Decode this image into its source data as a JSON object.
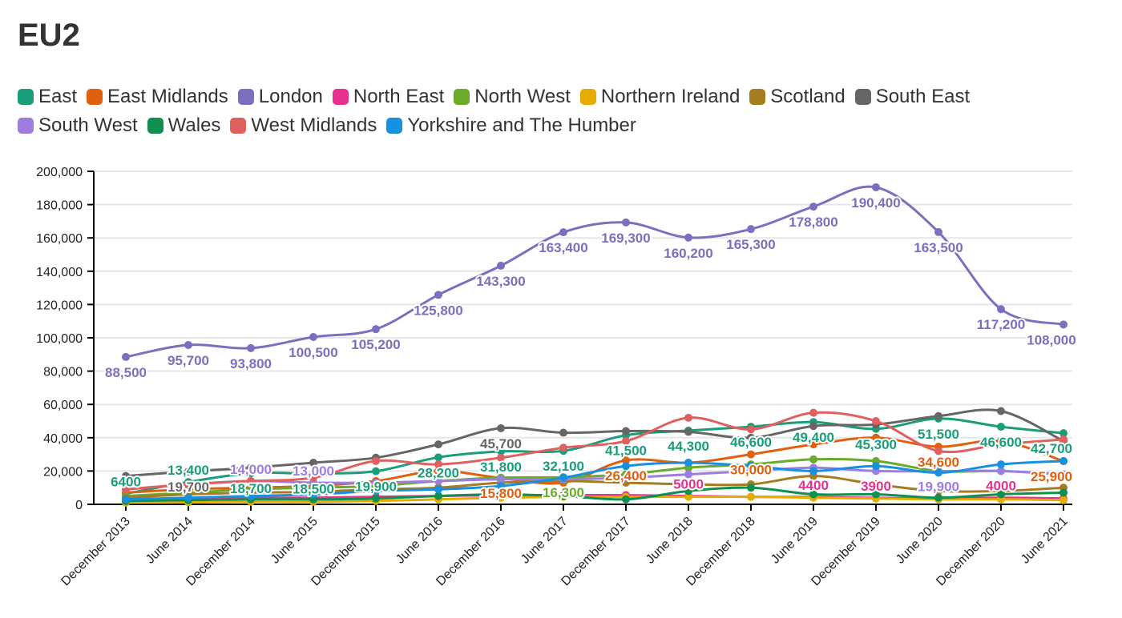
{
  "chart_data": {
    "type": "line",
    "title": "EU2",
    "xlabel": "",
    "ylabel": "",
    "ylim": [
      0,
      200000
    ],
    "yticks": [
      0,
      20000,
      40000,
      60000,
      80000,
      100000,
      120000,
      140000,
      160000,
      180000,
      200000
    ],
    "ytick_labels": [
      "0",
      "20,000",
      "40,000",
      "60,000",
      "80,000",
      "100,000",
      "120,000",
      "140,000",
      "160,000",
      "180,000",
      "200,000"
    ],
    "grid": true,
    "legend_position": "top",
    "categories": [
      "December 2013",
      "June 2014",
      "December 2014",
      "June 2015",
      "December 2015",
      "June 2016",
      "December 2016",
      "June 2017",
      "December 2017",
      "June 2018",
      "December 2018",
      "June 2019",
      "December 2019",
      "June 2020",
      "December 2020",
      "June 2021"
    ],
    "series": [
      {
        "name": "East",
        "color": "#1a9e7a",
        "values": [
          6400,
          13400,
          18700,
          18500,
          19900,
          28200,
          31800,
          32100,
          41500,
          44300,
          46600,
          49400,
          45300,
          51500,
          46600,
          42700
        ]
      },
      {
        "name": "East Midlands",
        "color": "#e06010",
        "values": [
          7000,
          9000,
          10000,
          11000,
          14000,
          20000,
          15800,
          13000,
          26400,
          25000,
          30000,
          36000,
          40000,
          34600,
          38000,
          25900
        ]
      },
      {
        "name": "London",
        "color": "#7b6fbf",
        "values": [
          88500,
          95700,
          93800,
          100500,
          105200,
          125800,
          143300,
          163400,
          169300,
          160200,
          165300,
          178800,
          190400,
          163500,
          117200,
          108000
        ]
      },
      {
        "name": "North East",
        "color": "#e83090",
        "values": [
          3000,
          3500,
          3800,
          4000,
          4500,
          5000,
          5500,
          5500,
          5500,
          5000,
          4500,
          4400,
          3900,
          3500,
          4000,
          3500
        ]
      },
      {
        "name": "North West",
        "color": "#6aab2a",
        "values": [
          5000,
          7000,
          9000,
          10000,
          11000,
          14000,
          16000,
          16300,
          18000,
          22000,
          24000,
          27000,
          26000,
          20000,
          20000,
          18000
        ]
      },
      {
        "name": "Northern Ireland",
        "color": "#e6ac00",
        "values": [
          1000,
          1200,
          1500,
          1500,
          2000,
          3000,
          4000,
          4500,
          4500,
          4500,
          4500,
          4000,
          3500,
          3000,
          3000,
          2500
        ]
      },
      {
        "name": "Scotland",
        "color": "#a67c20",
        "values": [
          4000,
          6000,
          7000,
          7500,
          9000,
          10000,
          13000,
          14000,
          13000,
          12000,
          12000,
          17000,
          12000,
          8000,
          8000,
          10000
        ]
      },
      {
        "name": "South East",
        "color": "#666666",
        "values": [
          17000,
          19700,
          22000,
          25000,
          28000,
          36000,
          45700,
          43000,
          44000,
          43500,
          40000,
          47000,
          48000,
          53000,
          56000,
          38000
        ]
      },
      {
        "name": "South West",
        "color": "#9d7de0",
        "values": [
          9000,
          12000,
          14000,
          13000,
          13000,
          14000,
          15000,
          15000,
          16000,
          18000,
          20000,
          22000,
          20000,
          19900,
          20000,
          18000
        ]
      },
      {
        "name": "Wales",
        "color": "#0f9050",
        "values": [
          2000,
          2500,
          3000,
          3000,
          3500,
          5000,
          6000,
          5000,
          3000,
          8000,
          10000,
          6000,
          6000,
          4000,
          6000,
          7000
        ]
      },
      {
        "name": "West Midlands",
        "color": "#e06060",
        "values": [
          9000,
          12000,
          14000,
          16000,
          26000,
          24000,
          28000,
          34000,
          38000,
          52000,
          45000,
          55000,
          50000,
          32000,
          36000,
          39000
        ]
      },
      {
        "name": "Yorkshire and The Humber",
        "color": "#1890e0",
        "values": [
          3000,
          4000,
          5000,
          6000,
          8000,
          9000,
          11000,
          16000,
          23000,
          25000,
          23000,
          20000,
          23000,
          19000,
          24000,
          26000
        ]
      }
    ],
    "data_labels": [
      {
        "series": "London",
        "index": 0,
        "text": "88,500",
        "pos": "below"
      },
      {
        "series": "London",
        "index": 1,
        "text": "95,700",
        "pos": "below"
      },
      {
        "series": "London",
        "index": 2,
        "text": "93,800",
        "pos": "below"
      },
      {
        "series": "London",
        "index": 3,
        "text": "100,500",
        "pos": "below"
      },
      {
        "series": "London",
        "index": 4,
        "text": "105,200",
        "pos": "below"
      },
      {
        "series": "London",
        "index": 5,
        "text": "125,800",
        "pos": "below"
      },
      {
        "series": "London",
        "index": 6,
        "text": "143,300",
        "pos": "below"
      },
      {
        "series": "London",
        "index": 7,
        "text": "163,400",
        "pos": "below"
      },
      {
        "series": "London",
        "index": 8,
        "text": "169,300",
        "pos": "below"
      },
      {
        "series": "London",
        "index": 9,
        "text": "160,200",
        "pos": "below"
      },
      {
        "series": "London",
        "index": 10,
        "text": "165,300",
        "pos": "below"
      },
      {
        "series": "London",
        "index": 11,
        "text": "178,800",
        "pos": "below"
      },
      {
        "series": "London",
        "index": 12,
        "text": "190,400",
        "pos": "below"
      },
      {
        "series": "London",
        "index": 13,
        "text": "163,500",
        "pos": "below"
      },
      {
        "series": "London",
        "index": 14,
        "text": "117,200",
        "pos": "below"
      },
      {
        "series": "London",
        "index": 15,
        "text": "108,000",
        "pos": "below"
      },
      {
        "series": "East",
        "index": 0,
        "text": "6400",
        "pos": "above"
      },
      {
        "series": "East",
        "index": 1,
        "text": "13,400",
        "pos": "above"
      },
      {
        "series": "East",
        "index": 2,
        "text": "18,700",
        "pos": "below"
      },
      {
        "series": "East",
        "index": 3,
        "text": "18,500",
        "pos": "below"
      },
      {
        "series": "East",
        "index": 4,
        "text": "19,900",
        "pos": "below"
      },
      {
        "series": "East",
        "index": 5,
        "text": "28,200",
        "pos": "below"
      },
      {
        "series": "East",
        "index": 6,
        "text": "31,800",
        "pos": "below"
      },
      {
        "series": "East",
        "index": 7,
        "text": "32,100",
        "pos": "below"
      },
      {
        "series": "East",
        "index": 8,
        "text": "41,500",
        "pos": "below"
      },
      {
        "series": "East",
        "index": 9,
        "text": "44,300",
        "pos": "below"
      },
      {
        "series": "East",
        "index": 10,
        "text": "46,600",
        "pos": "below"
      },
      {
        "series": "East",
        "index": 11,
        "text": "49,400",
        "pos": "below"
      },
      {
        "series": "East",
        "index": 12,
        "text": "45,300",
        "pos": "below"
      },
      {
        "series": "East",
        "index": 13,
        "text": "51,500",
        "pos": "below"
      },
      {
        "series": "East",
        "index": 14,
        "text": "46,600",
        "pos": "below"
      },
      {
        "series": "East",
        "index": 15,
        "text": "42,700",
        "pos": "below"
      },
      {
        "series": "South East",
        "index": 1,
        "text": "19,700",
        "pos": "below"
      },
      {
        "series": "South East",
        "index": 6,
        "text": "45,700",
        "pos": "below"
      },
      {
        "series": "South West",
        "index": 2,
        "text": "14,000",
        "pos": "above"
      },
      {
        "series": "South West",
        "index": 3,
        "text": "13,000",
        "pos": "above"
      },
      {
        "series": "South West",
        "index": 13,
        "text": "19,900",
        "pos": "below"
      },
      {
        "series": "East Midlands",
        "index": 6,
        "text": "15,800",
        "pos": "below"
      },
      {
        "series": "East Midlands",
        "index": 8,
        "text": "26,400",
        "pos": "below"
      },
      {
        "series": "East Midlands",
        "index": 10,
        "text": "30,000",
        "pos": "below"
      },
      {
        "series": "East Midlands",
        "index": 13,
        "text": "34,600",
        "pos": "below"
      },
      {
        "series": "East Midlands",
        "index": 15,
        "text": "25,900",
        "pos": "below"
      },
      {
        "series": "North West",
        "index": 7,
        "text": "16,300",
        "pos": "below"
      },
      {
        "series": "North East",
        "index": 9,
        "text": "5000",
        "pos": "above"
      },
      {
        "series": "North East",
        "index": 11,
        "text": "4400",
        "pos": "above"
      },
      {
        "series": "North East",
        "index": 12,
        "text": "3900",
        "pos": "above"
      },
      {
        "series": "North East",
        "index": 14,
        "text": "4000",
        "pos": "above"
      }
    ]
  }
}
